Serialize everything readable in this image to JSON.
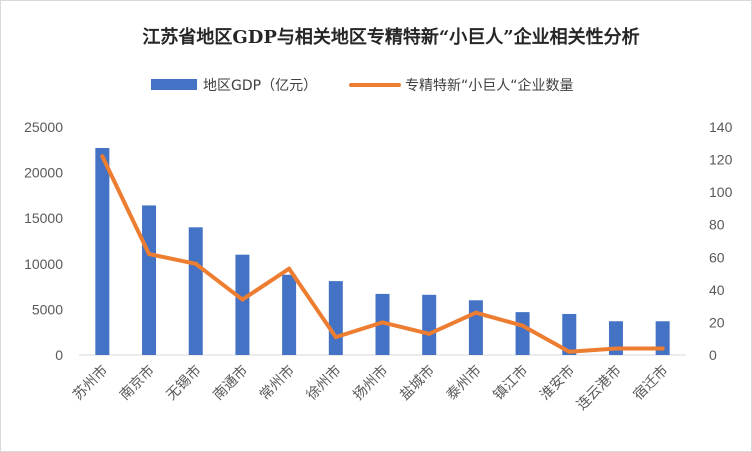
{
  "chart_data": {
    "type": "bar+line",
    "title": "江苏省地区GDP与相关地区专精特新“小巨人”企业相关性分析",
    "categories": [
      "苏州市",
      "南京市",
      "无锡市",
      "南通市",
      "常州市",
      "徐州市",
      "扬州市",
      "盐城市",
      "泰州市",
      "镇江市",
      "淮安市",
      "连云港市",
      "宿迁市"
    ],
    "series": [
      {
        "name": "地区GDP（亿元）",
        "type": "bar",
        "axis": "left",
        "color": "#4472C4",
        "values": [
          22700,
          16400,
          14000,
          11000,
          8800,
          8100,
          6700,
          6600,
          6000,
          4700,
          4500,
          3700,
          3700
        ]
      },
      {
        "name": "专精特新“小巨人“企业数量",
        "type": "line",
        "axis": "right",
        "color": "#ED7D31",
        "values": [
          122,
          62,
          56,
          34,
          53,
          11,
          20,
          13,
          26,
          18,
          2,
          4,
          4
        ]
      }
    ],
    "y_left": {
      "min": 0,
      "max": 25000,
      "ticks": [
        "25000",
        "20000",
        "15000",
        "10000",
        "5000",
        "0"
      ]
    },
    "y_right": {
      "min": 0,
      "max": 140,
      "ticks": [
        "140",
        "120",
        "100",
        "80",
        "60",
        "40",
        "20",
        "0"
      ]
    },
    "grid": false,
    "legend_position": "top"
  }
}
